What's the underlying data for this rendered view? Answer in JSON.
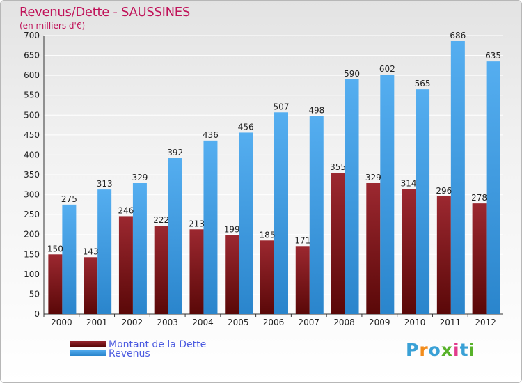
{
  "chart_data": {
    "type": "bar",
    "title": "Revenus/Dette - SAUSSINES",
    "subtitle": "(en milliers d'€)",
    "categories": [
      "2000",
      "2001",
      "2002",
      "2003",
      "2004",
      "2005",
      "2006",
      "2007",
      "2008",
      "2009",
      "2010",
      "2011",
      "2012"
    ],
    "series": [
      {
        "name": "Montant de la Dette",
        "color": "#8c1414",
        "values": [
          150,
          143,
          246,
          222,
          213,
          199,
          185,
          171,
          355,
          329,
          314,
          296,
          278
        ]
      },
      {
        "name": "Revenus",
        "color": "#3c9de2",
        "values": [
          275,
          313,
          329,
          392,
          436,
          456,
          507,
          498,
          590,
          602,
          565,
          686,
          635
        ]
      }
    ],
    "ylim": [
      0,
      700
    ],
    "yticks": [
      0,
      50,
      100,
      150,
      200,
      250,
      300,
      350,
      400,
      450,
      500,
      550,
      600,
      650,
      700
    ],
    "grid": true,
    "legend_position": "bottom-left"
  },
  "brand": {
    "text": "Proxiti"
  }
}
